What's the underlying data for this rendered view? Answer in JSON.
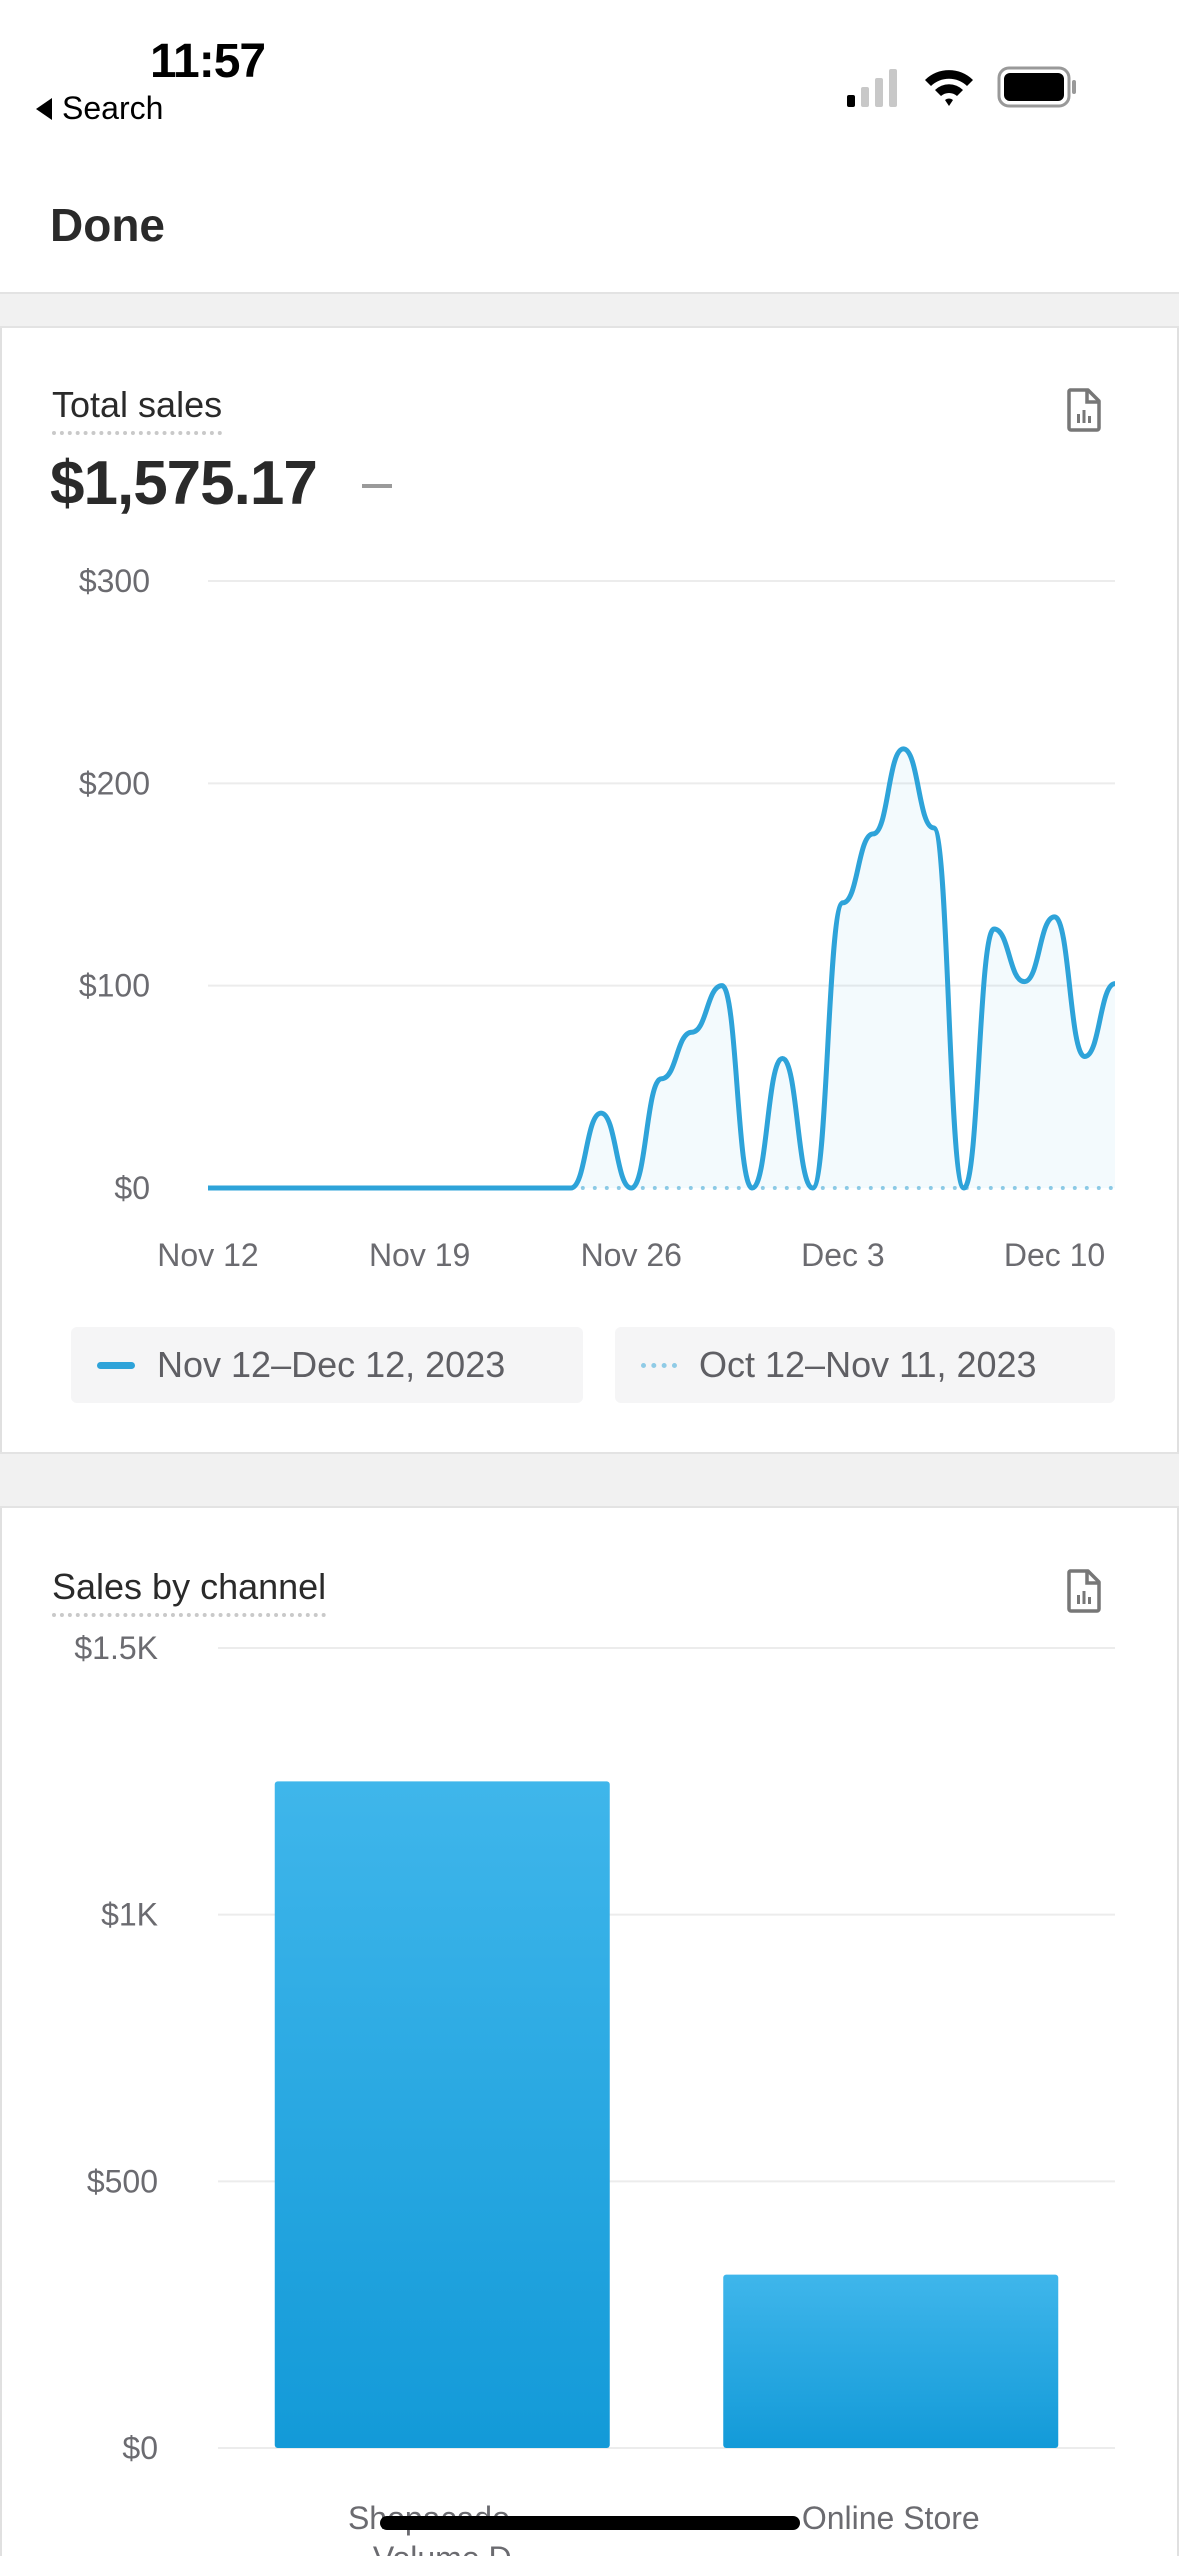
{
  "status_bar": {
    "time": "11:57",
    "back_label": "Search",
    "icons": [
      "signal-icon",
      "wifi-icon",
      "battery-icon"
    ]
  },
  "nav": {
    "done_label": "Done"
  },
  "total_sales": {
    "title": "Total sales",
    "value": "$1,575.17",
    "icon": "report-icon",
    "legend": [
      {
        "label": "Nov 12–Dec 12, 2023",
        "style": "solid"
      },
      {
        "label": "Oct 12–Nov 11, 2023",
        "style": "dotted"
      }
    ]
  },
  "sales_by_channel": {
    "title": "Sales by channel",
    "icon": "report-icon"
  },
  "colors": {
    "accent": "#2ea3d9",
    "bar_top": "#3fb6eb",
    "bar_bottom": "#139ad8",
    "comparison": "#8fcbe6"
  },
  "chart_data": [
    {
      "type": "line",
      "title": "Total sales",
      "x": [
        "Nov 12",
        "Nov 13",
        "Nov 14",
        "Nov 15",
        "Nov 16",
        "Nov 17",
        "Nov 18",
        "Nov 19",
        "Nov 20",
        "Nov 21",
        "Nov 22",
        "Nov 23",
        "Nov 24",
        "Nov 25",
        "Nov 26",
        "Nov 27",
        "Nov 28",
        "Nov 29",
        "Nov 30",
        "Dec 1",
        "Dec 2",
        "Dec 3",
        "Dec 4",
        "Dec 5",
        "Dec 6",
        "Dec 7",
        "Dec 8",
        "Dec 9",
        "Dec 10",
        "Dec 11",
        "Dec 12"
      ],
      "xticks": [
        "Nov 12",
        "Nov 19",
        "Nov 26",
        "Dec 3",
        "Dec 10"
      ],
      "yticks": [
        "$0",
        "$100",
        "$200",
        "$300"
      ],
      "ylim": [
        0,
        300
      ],
      "series": [
        {
          "name": "Nov 12–Dec 12, 2023",
          "values": [
            0,
            0,
            0,
            0,
            0,
            0,
            0,
            0,
            0,
            0,
            0,
            0,
            0,
            37,
            0,
            54,
            77,
            100,
            0,
            64,
            0,
            141,
            175,
            217,
            178,
            0,
            128,
            102,
            134,
            65,
            101
          ]
        },
        {
          "name": "Oct 12–Nov 11, 2023",
          "values": [
            0,
            0,
            0,
            0,
            0,
            0,
            0,
            0,
            0,
            0,
            0,
            0,
            0,
            0,
            0,
            0,
            0,
            0,
            0,
            0,
            0,
            0,
            0,
            0,
            0,
            0,
            0,
            0,
            0,
            0,
            0
          ]
        }
      ],
      "grid": true
    },
    {
      "type": "bar",
      "title": "Sales by channel",
      "categories": [
        "Shopacado – Volume D",
        "Online Store"
      ],
      "values": [
        1250,
        325
      ],
      "yticks": [
        "$0",
        "$500",
        "$1K",
        "$1.5K"
      ],
      "ylim": [
        0,
        1500
      ],
      "grid": true
    }
  ]
}
